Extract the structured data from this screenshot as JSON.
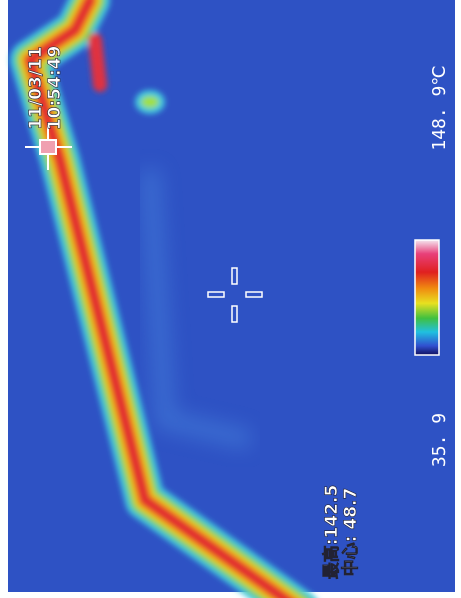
{
  "timestamp": {
    "date": "11/03/11",
    "time": "10:54:49"
  },
  "readings": {
    "max": "最高:142.5",
    "center": "中心: 48.7"
  },
  "scale": {
    "min": "35. 9",
    "max": "148. 9℃"
  }
}
